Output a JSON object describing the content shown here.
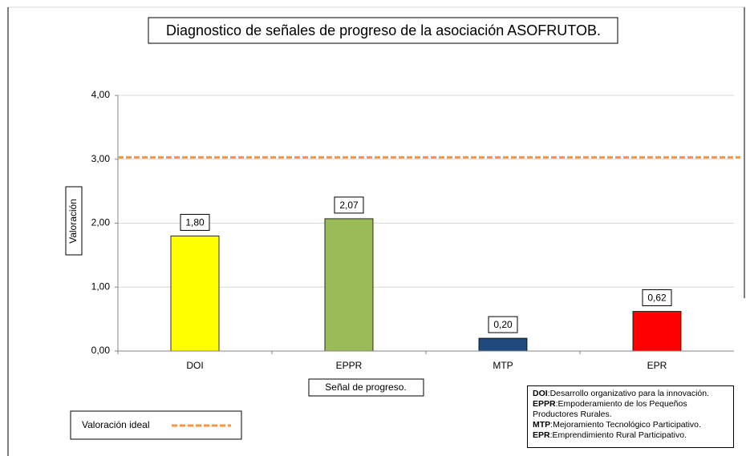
{
  "chart_data": {
    "type": "bar",
    "title": "Diagnostico de señales de progreso de la asociación ASOFRUTOB.",
    "x_label": "Señal de progreso.",
    "y_label": "Valoración",
    "categories": [
      "DOI",
      "EPPR",
      "MTP",
      "EPR"
    ],
    "values": [
      1.8,
      2.07,
      0.2,
      0.62
    ],
    "value_labels": [
      "1,80",
      "2,07",
      "0,20",
      "0,62"
    ],
    "colors": [
      "#ffff00",
      "#9bbb59",
      "#1f497d",
      "#ff0000"
    ],
    "ylim": [
      0,
      4
    ],
    "yticks": [
      {
        "value": 0,
        "label": "0,00"
      },
      {
        "value": 1,
        "label": "1,00"
      },
      {
        "value": 2,
        "label": "2,00"
      },
      {
        "value": 3,
        "label": "3,00"
      },
      {
        "value": 4,
        "label": "4,00"
      }
    ],
    "grid": true,
    "ideal": {
      "name": "Valoración ideal",
      "value": 3.03,
      "color": "#f79646"
    },
    "notes": [
      {
        "abbr": "DOI",
        "text": ":Desarrollo organizativo para la innovación."
      },
      {
        "abbr": "EPPR",
        "text": ":Empoderamiento de los Pequeños Productores Rurales."
      },
      {
        "abbr": "MTP",
        "text": ":Mejoramiento Tecnológico Participativo."
      },
      {
        "abbr": "EPR",
        "text": ":Emprendimiento Rural Participativo."
      }
    ]
  }
}
